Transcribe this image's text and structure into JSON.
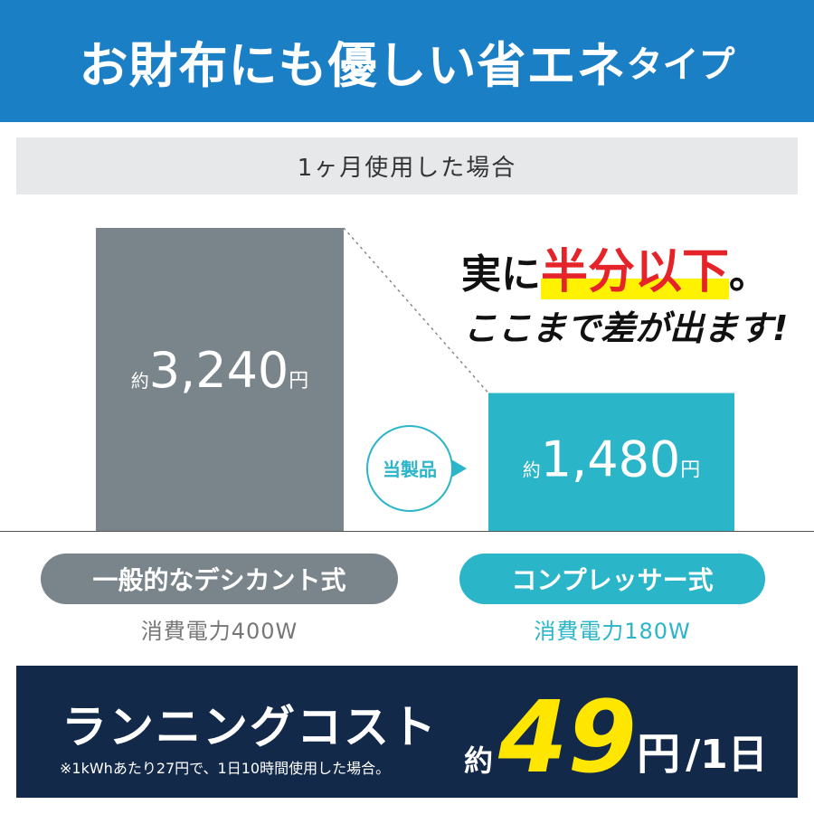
{
  "header": {
    "title": "お財布にも優しい省エネ",
    "title_suffix": "タイプ"
  },
  "period": "1ヶ月使用した場合",
  "claim": {
    "before": "実に",
    "highlight": "半分以下",
    "after": "。",
    "line2": "ここまで差が出ます!"
  },
  "product_badge": "当製品",
  "items": [
    {
      "name": "一般的なデシカント式",
      "prefix": "約",
      "value": 3240,
      "label": "3,240",
      "unit": "円",
      "power": "消費電力400W",
      "color": "#7a858b"
    },
    {
      "name": "コンプレッサー式",
      "prefix": "約",
      "value": 1480,
      "label": "1,480",
      "unit": "円",
      "power": "消費電力180W",
      "color": "#2bb5c8"
    }
  ],
  "footer": {
    "title": "ランニングコスト",
    "note": "※1kWhあたり27円で、1日10時間使用した場合。",
    "prefix": "約",
    "value": "49",
    "unit": "円",
    "per": "/1日"
  }
}
